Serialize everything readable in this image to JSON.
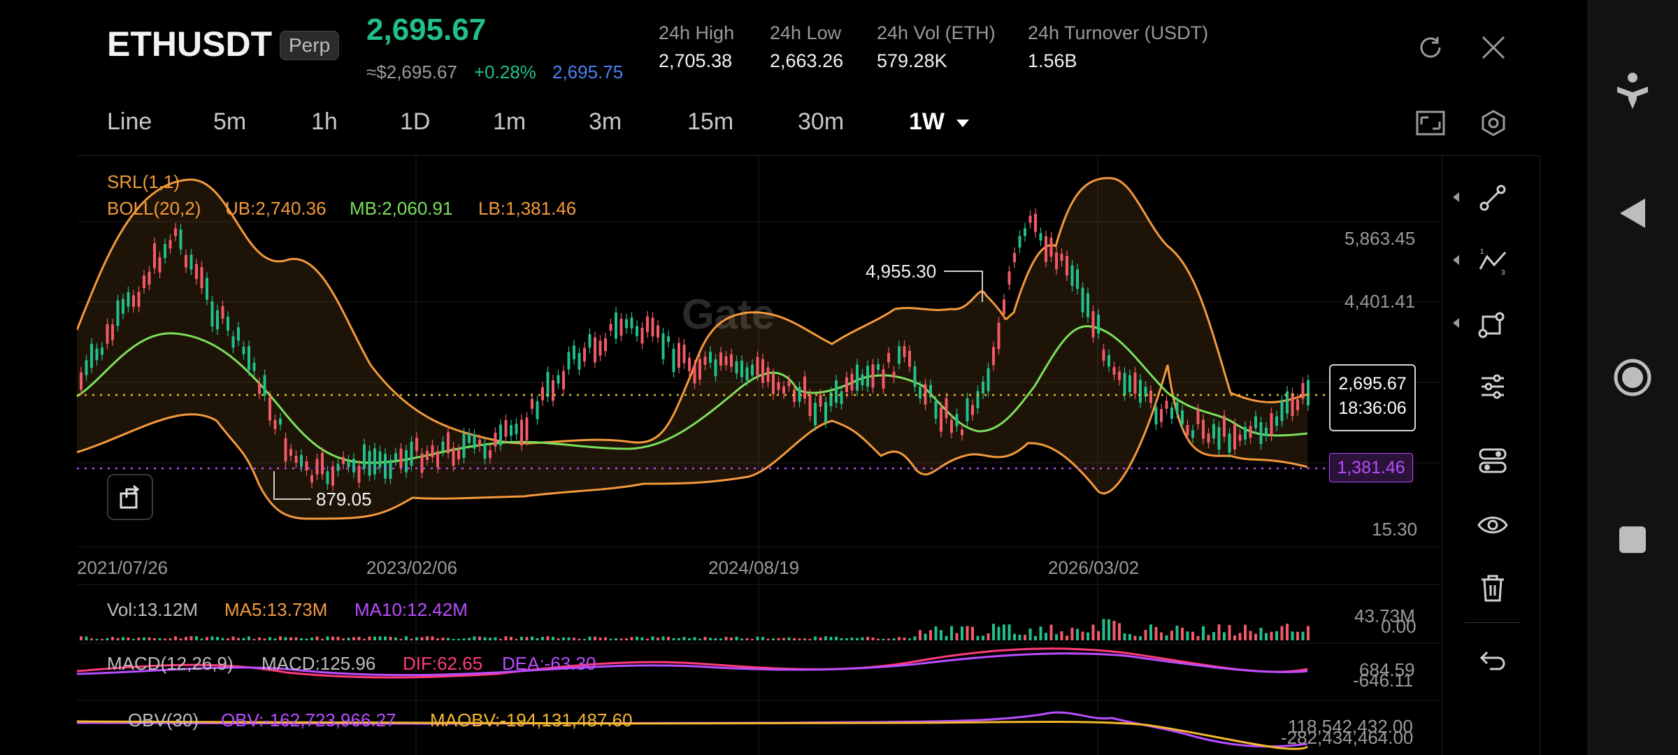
{
  "header": {
    "symbol": "ETHUSDT",
    "badge": "Perp",
    "price": "2,695.67",
    "usd_price": "≈$2,695.67",
    "change": "+0.28%",
    "mark_price": "2,695.75",
    "stats": [
      {
        "label": "24h High",
        "value": "2,705.38"
      },
      {
        "label": "24h Low",
        "value": "2,663.26"
      },
      {
        "label": "24h Vol (ETH)",
        "value": "579.28K"
      },
      {
        "label": "24h Turnover (USDT)",
        "value": "1.56B"
      }
    ]
  },
  "timeframes": [
    "Line",
    "5m",
    "1h",
    "1D",
    "1m",
    "3m",
    "15m",
    "30m",
    "1W"
  ],
  "selected_timeframe": "1W",
  "indicators": {
    "srl": "SRL(1,1)",
    "boll": "BOLL(20,2)",
    "ub": "UB:2,740.36",
    "mb": "MB:2,060.91",
    "lb": "LB:1,381.46"
  },
  "price_axis": [
    "5,863.45",
    "4,401.41",
    "15.30"
  ],
  "markers": {
    "high": "4,955.30",
    "low": "879.05",
    "current_price": "2,695.67",
    "countdown": "18:36:06",
    "lb_tag": "1,381.46"
  },
  "date_axis": [
    "2021/07/26",
    "2023/02/06",
    "2024/08/19",
    "2026/03/02"
  ],
  "volume": {
    "vol": "Vol:13.12M",
    "ma5": "MA5:13.73M",
    "ma10": "MA10:12.42M",
    "axis_top": "43.73M",
    "axis_bottom": "0.00"
  },
  "macd": {
    "title": "MACD(12,26,9)",
    "macd": "MACD:125.96",
    "dif": "DIF:62.65",
    "dea": "DEA:-63.30",
    "axis_top": "684.59",
    "axis_bottom": "-646.11"
  },
  "obv": {
    "title": "OBV(30)",
    "obv": "OBV:-162,723,966.27",
    "maobv": "MAOBV:-194,131,487.60",
    "axis_top": "118,542,432.00",
    "axis_bottom": "-282,434,464.00"
  },
  "watermark": "Gate",
  "colors": {
    "up": "#21c08b",
    "down": "#f25a67",
    "boll": "#f39a3c",
    "mid": "#7be05c",
    "purple": "#b94dff"
  }
}
